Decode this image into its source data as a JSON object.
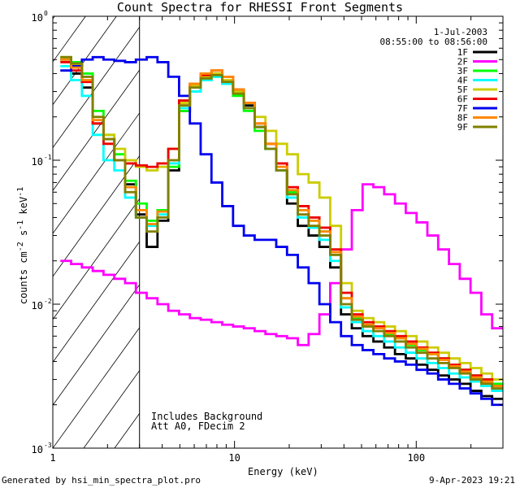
{
  "chart_data": {
    "type": "line",
    "title": "Count Spectra for RHESSI Front Segments",
    "xlabel": "Energy (keV)",
    "ylabel_main": "counts cm",
    "ylabel_exp1": "-2",
    "ylabel_mid": " s",
    "ylabel_exp2": "-1",
    "ylabel_end": " keV",
    "ylabel_exp3": "-1",
    "x_scale": "log",
    "y_scale": "log",
    "xlim": [
      1,
      300
    ],
    "ylim": [
      0.001,
      1
    ],
    "x_ticks": [
      {
        "value": 1,
        "label": "1"
      },
      {
        "value": 10,
        "label": "10"
      },
      {
        "value": 100,
        "label": "100"
      }
    ],
    "y_ticks": [
      {
        "value": 1,
        "base": "10",
        "exp": "0"
      },
      {
        "value": 0.1,
        "base": "10",
        "exp": "-1"
      },
      {
        "value": 0.01,
        "base": "10",
        "exp": "-2"
      },
      {
        "value": 0.001,
        "base": "10",
        "exp": "-3"
      }
    ],
    "hatch_region": [
      1,
      3
    ],
    "date": "1-Jul-2003",
    "time_range": "08:55:00 to 08:56:00",
    "legend_position": "top-right",
    "annotations": [
      "Includes Background",
      "Att A0, FDecim 2"
    ],
    "series": [
      {
        "name": "1F",
        "color": "#000000",
        "values": [
          0.5,
          0.4,
          0.32,
          0.18,
          0.14,
          0.1,
          0.068,
          0.042,
          0.025,
          0.038,
          0.085,
          0.22,
          0.32,
          0.38,
          0.4,
          0.35,
          0.3,
          0.24,
          0.17,
          0.12,
          0.085,
          0.05,
          0.035,
          0.03,
          0.025,
          0.018,
          0.0085,
          0.0068,
          0.006,
          0.0055,
          0.005,
          0.0045,
          0.0042,
          0.0038,
          0.0035,
          0.0032,
          0.003,
          0.0028,
          0.0025,
          0.0023,
          0.0022
        ]
      },
      {
        "name": "2F",
        "color": "#ff00ff",
        "values": [
          0.02,
          0.019,
          0.018,
          0.017,
          0.016,
          0.015,
          0.014,
          0.012,
          0.011,
          0.01,
          0.009,
          0.0085,
          0.008,
          0.0078,
          0.0075,
          0.0072,
          0.007,
          0.0068,
          0.0065,
          0.0062,
          0.006,
          0.0058,
          0.0052,
          0.0062,
          0.0085,
          0.014,
          0.024,
          0.045,
          0.068,
          0.065,
          0.058,
          0.05,
          0.043,
          0.037,
          0.03,
          0.024,
          0.019,
          0.015,
          0.012,
          0.0085,
          0.0068
        ]
      },
      {
        "name": "3F",
        "color": "#00ff00",
        "values": [
          0.52,
          0.48,
          0.4,
          0.22,
          0.15,
          0.11,
          0.072,
          0.05,
          0.038,
          0.045,
          0.09,
          0.22,
          0.3,
          0.36,
          0.38,
          0.34,
          0.28,
          0.22,
          0.16,
          0.12,
          0.085,
          0.06,
          0.045,
          0.038,
          0.032,
          0.022,
          0.011,
          0.008,
          0.0072,
          0.0068,
          0.0062,
          0.0058,
          0.0052,
          0.0048,
          0.0045,
          0.0042,
          0.0038,
          0.0035,
          0.0032,
          0.003,
          0.0028
        ]
      },
      {
        "name": "4F",
        "color": "#00ffff",
        "values": [
          0.45,
          0.36,
          0.28,
          0.15,
          0.1,
          0.085,
          0.055,
          0.04,
          0.035,
          0.042,
          0.095,
          0.23,
          0.3,
          0.36,
          0.38,
          0.34,
          0.29,
          0.23,
          0.17,
          0.12,
          0.085,
          0.055,
          0.04,
          0.034,
          0.028,
          0.02,
          0.0095,
          0.0075,
          0.0065,
          0.006,
          0.0055,
          0.005,
          0.0046,
          0.0042,
          0.0039,
          0.0036,
          0.0033,
          0.0031,
          0.0029,
          0.0027,
          0.0025
        ]
      },
      {
        "name": "5F",
        "color": "#cccc00",
        "values": [
          0.52,
          0.46,
          0.38,
          0.2,
          0.15,
          0.12,
          0.1,
          0.09,
          0.085,
          0.09,
          0.12,
          0.25,
          0.33,
          0.38,
          0.4,
          0.36,
          0.3,
          0.25,
          0.2,
          0.16,
          0.13,
          0.11,
          0.08,
          0.07,
          0.055,
          0.035,
          0.014,
          0.009,
          0.008,
          0.0075,
          0.007,
          0.0065,
          0.006,
          0.0055,
          0.005,
          0.0046,
          0.0042,
          0.0039,
          0.0036,
          0.0033,
          0.003
        ]
      },
      {
        "name": "6F",
        "color": "#ee0000",
        "values": [
          0.48,
          0.42,
          0.35,
          0.18,
          0.13,
          0.1,
          0.095,
          0.092,
          0.09,
          0.095,
          0.12,
          0.26,
          0.34,
          0.39,
          0.42,
          0.38,
          0.31,
          0.25,
          0.18,
          0.13,
          0.095,
          0.065,
          0.048,
          0.04,
          0.034,
          0.024,
          0.012,
          0.0085,
          0.0075,
          0.007,
          0.0065,
          0.006,
          0.0055,
          0.005,
          0.0046,
          0.0042,
          0.0038,
          0.0035,
          0.0032,
          0.003,
          0.0027
        ]
      },
      {
        "name": "7F",
        "color": "#0000ee",
        "values": [
          0.42,
          0.45,
          0.5,
          0.52,
          0.5,
          0.49,
          0.48,
          0.5,
          0.52,
          0.48,
          0.38,
          0.28,
          0.18,
          0.11,
          0.07,
          0.048,
          0.035,
          0.03,
          0.028,
          0.028,
          0.025,
          0.022,
          0.018,
          0.014,
          0.01,
          0.0075,
          0.006,
          0.0052,
          0.0048,
          0.0045,
          0.0042,
          0.004,
          0.0038,
          0.0035,
          0.0033,
          0.003,
          0.0028,
          0.0026,
          0.0024,
          0.0022,
          0.002
        ]
      },
      {
        "name": "8F",
        "color": "#ff8800",
        "values": [
          0.5,
          0.44,
          0.36,
          0.19,
          0.14,
          0.1,
          0.065,
          0.045,
          0.036,
          0.044,
          0.1,
          0.24,
          0.34,
          0.4,
          0.42,
          0.38,
          0.31,
          0.25,
          0.18,
          0.13,
          0.09,
          0.062,
          0.045,
          0.038,
          0.032,
          0.023,
          0.011,
          0.0082,
          0.0072,
          0.0068,
          0.0063,
          0.0058,
          0.0053,
          0.0049,
          0.0045,
          0.0041,
          0.0037,
          0.0034,
          0.0031,
          0.0029,
          0.0027
        ]
      },
      {
        "name": "9F",
        "color": "#808000",
        "values": [
          0.52,
          0.47,
          0.38,
          0.2,
          0.14,
          0.1,
          0.06,
          0.04,
          0.032,
          0.04,
          0.1,
          0.24,
          0.32,
          0.37,
          0.39,
          0.35,
          0.29,
          0.23,
          0.17,
          0.12,
          0.085,
          0.058,
          0.042,
          0.035,
          0.03,
          0.022,
          0.01,
          0.0078,
          0.007,
          0.0065,
          0.006,
          0.0055,
          0.005,
          0.0046,
          0.0042,
          0.0039,
          0.0036,
          0.0033,
          0.003,
          0.0028,
          0.0026
        ]
      }
    ]
  },
  "footer": {
    "generated": "Generated by hsi_min_spectra_plot.pro",
    "timestamp": "9-Apr-2023 19:21"
  }
}
